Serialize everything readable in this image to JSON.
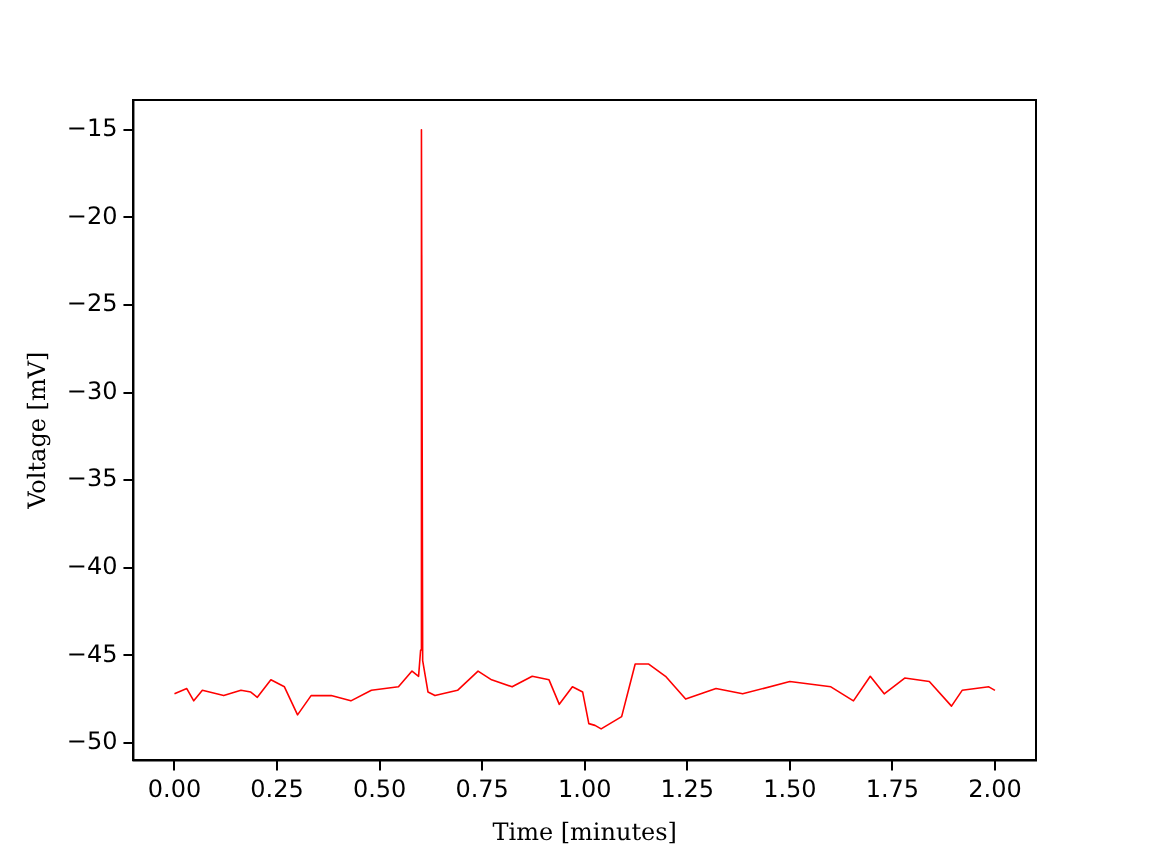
{
  "chart_data": {
    "type": "line",
    "xlabel": "Time [minutes]",
    "ylabel": "Voltage [mV]",
    "xlim": [
      -0.1,
      2.1
    ],
    "xticks": [
      {
        "value": 0,
        "label": "0.00"
      },
      {
        "value": 0.25,
        "label": "0.25"
      },
      {
        "value": 0.5,
        "label": "0.50"
      },
      {
        "value": 0.75,
        "label": "0.75"
      },
      {
        "value": 1,
        "label": "1.00"
      },
      {
        "value": 1.25,
        "label": "1.25"
      },
      {
        "value": 1.5,
        "label": "1.50"
      },
      {
        "value": 1.75,
        "label": "1.75"
      },
      {
        "value": 2,
        "label": "2.00"
      }
    ],
    "ylim": [
      -51,
      -13.3
    ],
    "yticks": [
      {
        "value": -50,
        "label": "−50"
      },
      {
        "value": -45,
        "label": "−45"
      },
      {
        "value": -40,
        "label": "−40"
      },
      {
        "value": -35,
        "label": "−35"
      },
      {
        "value": -30,
        "label": "−30"
      },
      {
        "value": -25,
        "label": "−25"
      },
      {
        "value": -20,
        "label": "−20"
      },
      {
        "value": -15,
        "label": "−15"
      }
    ],
    "grid": false,
    "legend": false,
    "marker": "none",
    "line_style": "solid",
    "series": [
      {
        "color": "#ff0000",
        "x": [
          0,
          0.03,
          0.047,
          0.068,
          0.12,
          0.162,
          0.186,
          0.202,
          0.235,
          0.268,
          0.3,
          0.333,
          0.382,
          0.43,
          0.48,
          0.546,
          0.579,
          0.595,
          0.6,
          0.602,
          0.605,
          0.618,
          0.635,
          0.69,
          0.74,
          0.773,
          0.823,
          0.872,
          0.913,
          0.938,
          0.97,
          0.995,
          1.01,
          1.025,
          1.04,
          1.09,
          1.123,
          1.156,
          1.197,
          1.246,
          1.32,
          1.385,
          1.5,
          1.6,
          1.655,
          1.696,
          1.73,
          1.78,
          1.84,
          1.894,
          1.92,
          1.985,
          2.0
        ],
        "values": [
          -47.2,
          -46.9,
          -47.6,
          -47.0,
          -47.3,
          -47.0,
          -47.1,
          -47.4,
          -46.4,
          -46.8,
          -48.4,
          -47.3,
          -47.3,
          -47.6,
          -47.0,
          -46.8,
          -45.9,
          -46.2,
          -44.7,
          -15,
          -45.3,
          -47.1,
          -47.3,
          -47.0,
          -45.9,
          -46.4,
          -46.8,
          -46.2,
          -46.4,
          -47.8,
          -46.8,
          -47.1,
          -48.9,
          -49.0,
          -49.2,
          -48.5,
          -45.5,
          -45.5,
          -46.2,
          -47.5,
          -46.9,
          -47.2,
          -46.5,
          -46.8,
          -47.6,
          -46.2,
          -47.2,
          -46.3,
          -46.5,
          -47.9,
          -47.0,
          -46.8,
          -47.0
        ]
      }
    ]
  }
}
